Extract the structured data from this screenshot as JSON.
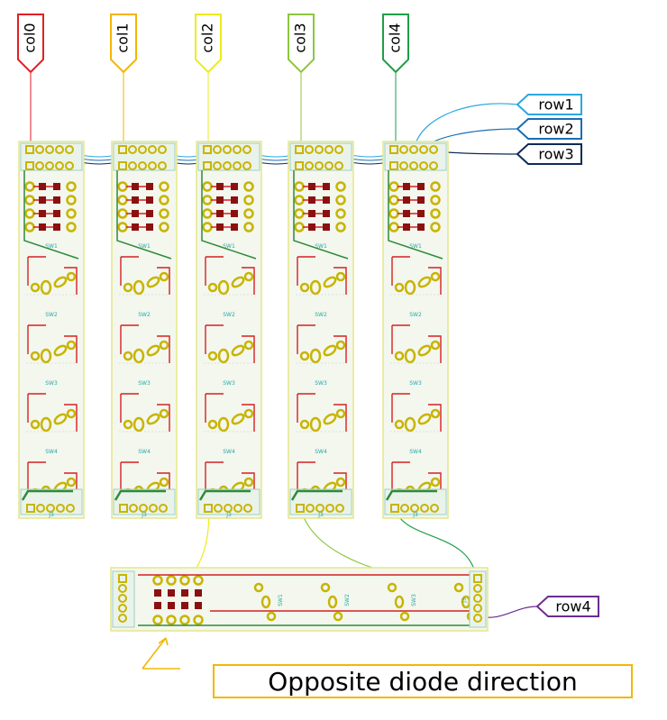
{
  "column_labels": [
    {
      "text": "col0",
      "color": "#e31e24"
    },
    {
      "text": "col1",
      "color": "#f5b400"
    },
    {
      "text": "col2",
      "color": "#ecec1c"
    },
    {
      "text": "col3",
      "color": "#8dc63f"
    },
    {
      "text": "col4",
      "color": "#1f9e48"
    }
  ],
  "row_labels": [
    {
      "text": "row1",
      "color": "#29a8e0"
    },
    {
      "text": "row2",
      "color": "#1b6db3"
    },
    {
      "text": "row3",
      "color": "#0e2a55"
    },
    {
      "text": "row4",
      "color": "#6a2d91"
    }
  ],
  "boards": {
    "vertical_switch_labels": [
      "SW1",
      "SW2",
      "SW3",
      "SW4"
    ],
    "connector_label": "J3",
    "horizontal_switch_labels": [
      "SW1",
      "SW2",
      "SW3",
      "SW4"
    ],
    "horizontal_connector_label": "J3"
  },
  "note": {
    "text": "Opposite diode direction",
    "color": "#f2b705"
  },
  "colors": {
    "board_outline": "#e6e68a",
    "board_fill": "#f3f7ee",
    "trace_red": "#d62121",
    "trace_green": "#2e8b3a",
    "pad_gold": "#c8b400",
    "diode_dark": "#8b1010",
    "silk_teal": "#2aa6a6"
  }
}
